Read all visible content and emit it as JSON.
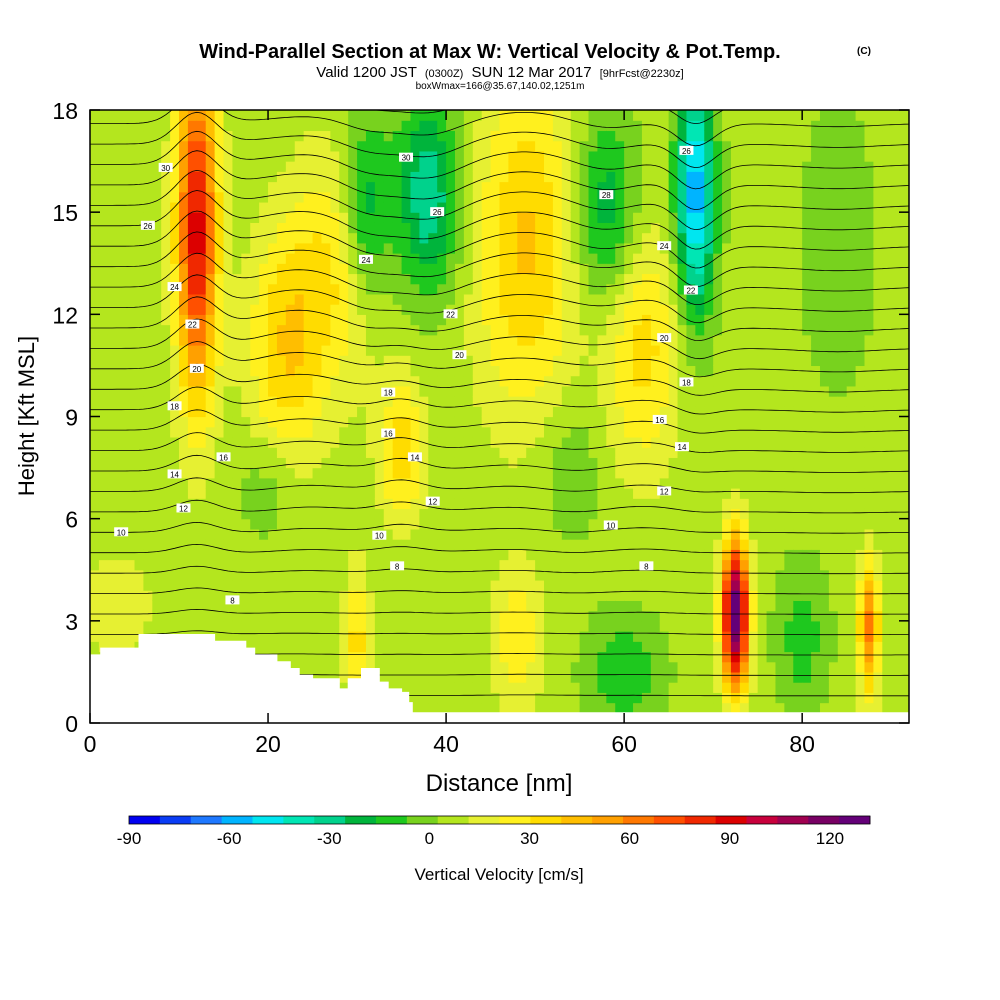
{
  "title": {
    "main": "Wind-Parallel Section at Max W: Vertical Velocity & Pot.Temp.",
    "copyright": "(C)",
    "valid_prefix": "Valid 1200 JST",
    "valid_zulu": "(0300Z)",
    "valid_date": "SUN 12 Mar 2017",
    "forecast": "[9hrFcst@2230z]",
    "box_info": "boxWmax=166@35.67,140.02,1251m"
  },
  "chart_data": {
    "type": "heatmap",
    "xlabel": "Distance [nm]",
    "ylabel": "Height [Kft MSL]",
    "xlim": [
      0,
      92
    ],
    "ylim": [
      0,
      18
    ],
    "x_ticks": [
      "0",
      "20",
      "40",
      "60",
      "80"
    ],
    "x_tick_values": [
      0,
      20,
      40,
      60,
      80
    ],
    "y_ticks": [
      "0",
      "3",
      "6",
      "9",
      "12",
      "15",
      "18"
    ],
    "y_tick_values": [
      0,
      3,
      6,
      9,
      12,
      15,
      18
    ],
    "colorbar": {
      "label": "Vertical Velocity [cm/s]",
      "range": [
        -90,
        132
      ],
      "tick_labels": [
        "-90",
        "-60",
        "-30",
        "0",
        "30",
        "60",
        "90",
        "120"
      ],
      "tick_values": [
        -90,
        -60,
        -30,
        0,
        30,
        60,
        90,
        120
      ],
      "colors": [
        "#0000f0",
        "#0a3cf5",
        "#1e78ff",
        "#00b4ff",
        "#00e6f0",
        "#00e6b4",
        "#00d28c",
        "#00b43c",
        "#1ec81e",
        "#78d21e",
        "#b4e61e",
        "#e6f032",
        "#fff01e",
        "#ffdc00",
        "#ffbe00",
        "#ffa000",
        "#ff7800",
        "#ff5000",
        "#f02800",
        "#dc0000",
        "#c8003c",
        "#a00050",
        "#780064",
        "#640078"
      ]
    },
    "velocity_cells": [
      {
        "xc": 12,
        "zc": 14.5,
        "sx": 1.6,
        "sz": 3.5,
        "value": 85
      },
      {
        "xc": 22,
        "zc": 11.0,
        "sx": 3.0,
        "sz": 2.5,
        "value": 32
      },
      {
        "xc": 28,
        "zc": 13.5,
        "sx": 3.5,
        "sz": 2.5,
        "value": 25
      },
      {
        "xc": 38,
        "zc": 15.5,
        "sx": 2.5,
        "sz": 2.0,
        "value": -40
      },
      {
        "xc": 31,
        "zc": 15.0,
        "sx": 2.0,
        "sz": 2.0,
        "value": -35
      },
      {
        "xc": 49,
        "zc": 14.0,
        "sx": 4.0,
        "sz": 3.5,
        "value": 35
      },
      {
        "xc": 58,
        "zc": 15.0,
        "sx": 2.5,
        "sz": 2.0,
        "value": -30
      },
      {
        "xc": 68,
        "zc": 15.5,
        "sx": 1.5,
        "sz": 2.5,
        "value": -65
      },
      {
        "xc": 62,
        "zc": 11.0,
        "sx": 3.0,
        "sz": 2.5,
        "value": 28
      },
      {
        "xc": 35,
        "zc": 8.0,
        "sx": 1.8,
        "sz": 1.5,
        "value": 30
      },
      {
        "xc": 72.5,
        "zc": 3.2,
        "sx": 1.0,
        "sz": 1.5,
        "value": 125
      },
      {
        "xc": 87.5,
        "zc": 2.8,
        "sx": 0.8,
        "sz": 1.4,
        "value": 55
      },
      {
        "xc": 30,
        "zc": 2.5,
        "sx": 1.0,
        "sz": 1.5,
        "value": 28
      },
      {
        "xc": 48,
        "zc": 2.5,
        "sx": 2.0,
        "sz": 1.5,
        "value": 22
      },
      {
        "xc": 60,
        "zc": 1.5,
        "sx": 3.0,
        "sz": 1.2,
        "value": -20
      },
      {
        "xc": 80,
        "zc": 2.5,
        "sx": 2.0,
        "sz": 1.5,
        "value": -18
      },
      {
        "xc": 20,
        "zc": 7.0,
        "sx": 2.5,
        "sz": 1.2,
        "value": -12
      },
      {
        "xc": 54,
        "zc": 7.5,
        "sx": 2.5,
        "sz": 1.5,
        "value": -12
      },
      {
        "xc": 84,
        "zc": 14.0,
        "sx": 3.0,
        "sz": 3.0,
        "value": -10
      },
      {
        "xc": 3,
        "zc": 3.5,
        "sx": 3.0,
        "sz": 1.2,
        "value": 12
      }
    ],
    "theta_contour_labels": [
      {
        "x": 8.5,
        "z": 16.3,
        "label": "30"
      },
      {
        "x": 6.5,
        "z": 14.6,
        "label": "26"
      },
      {
        "x": 9.5,
        "z": 12.8,
        "label": "24"
      },
      {
        "x": 11.5,
        "z": 11.7,
        "label": "22"
      },
      {
        "x": 12,
        "z": 10.4,
        "label": "20"
      },
      {
        "x": 9.5,
        "z": 9.3,
        "label": "18"
      },
      {
        "x": 15,
        "z": 7.8,
        "label": "16"
      },
      {
        "x": 9.5,
        "z": 7.3,
        "label": "14"
      },
      {
        "x": 10.5,
        "z": 6.3,
        "label": "12"
      },
      {
        "x": 3.5,
        "z": 5.6,
        "label": "10"
      },
      {
        "x": 16,
        "z": 3.6,
        "label": "8"
      },
      {
        "x": 35.5,
        "z": 16.6,
        "label": "30"
      },
      {
        "x": 39,
        "z": 15.0,
        "label": "26"
      },
      {
        "x": 31,
        "z": 13.6,
        "label": "24"
      },
      {
        "x": 40.5,
        "z": 12.0,
        "label": "22"
      },
      {
        "x": 41.5,
        "z": 10.8,
        "label": "20"
      },
      {
        "x": 33.5,
        "z": 9.7,
        "label": "18"
      },
      {
        "x": 33.5,
        "z": 8.5,
        "label": "16"
      },
      {
        "x": 36.5,
        "z": 7.8,
        "label": "14"
      },
      {
        "x": 38.5,
        "z": 6.5,
        "label": "12"
      },
      {
        "x": 32.5,
        "z": 5.5,
        "label": "10"
      },
      {
        "x": 34.5,
        "z": 4.6,
        "label": "8"
      },
      {
        "x": 58,
        "z": 15.5,
        "label": "28"
      },
      {
        "x": 64.5,
        "z": 14.0,
        "label": "24"
      },
      {
        "x": 67,
        "z": 16.8,
        "label": "26"
      },
      {
        "x": 67.5,
        "z": 12.7,
        "label": "22"
      },
      {
        "x": 64.5,
        "z": 11.3,
        "label": "20"
      },
      {
        "x": 67,
        "z": 10.0,
        "label": "18"
      },
      {
        "x": 64,
        "z": 8.9,
        "label": "16"
      },
      {
        "x": 66.5,
        "z": 8.1,
        "label": "14"
      },
      {
        "x": 64.5,
        "z": 6.8,
        "label": "12"
      },
      {
        "x": 58.5,
        "z": 5.8,
        "label": "10"
      },
      {
        "x": 62.5,
        "z": 4.6,
        "label": "8"
      }
    ],
    "terrain": [
      [
        0,
        2.0
      ],
      [
        1.2,
        2.0
      ],
      [
        1.2,
        2.2
      ],
      [
        5.5,
        2.2
      ],
      [
        5.5,
        2.6
      ],
      [
        14,
        2.6
      ],
      [
        14,
        2.4
      ],
      [
        17.5,
        2.4
      ],
      [
        17.5,
        2.2
      ],
      [
        18.5,
        2.2
      ],
      [
        18.5,
        2.0
      ],
      [
        21,
        2.0
      ],
      [
        21,
        1.8
      ],
      [
        22.5,
        1.8
      ],
      [
        22.5,
        1.6
      ],
      [
        23.5,
        1.6
      ],
      [
        23.5,
        1.4
      ],
      [
        25,
        1.4
      ],
      [
        25,
        1.3
      ],
      [
        28,
        1.3
      ],
      [
        28,
        1.0
      ],
      [
        29,
        1.0
      ],
      [
        29,
        1.3
      ],
      [
        30.5,
        1.3
      ],
      [
        30.5,
        1.6
      ],
      [
        32.5,
        1.6
      ],
      [
        32.5,
        1.2
      ],
      [
        33.5,
        1.2
      ],
      [
        33.5,
        1.0
      ],
      [
        35,
        1.0
      ],
      [
        35,
        0.9
      ],
      [
        35.8,
        0.9
      ],
      [
        35.8,
        0.6
      ],
      [
        36.2,
        0.6
      ],
      [
        36.2,
        0.3
      ],
      [
        92,
        0.3
      ],
      [
        92,
        0
      ],
      [
        0,
        0
      ]
    ]
  }
}
